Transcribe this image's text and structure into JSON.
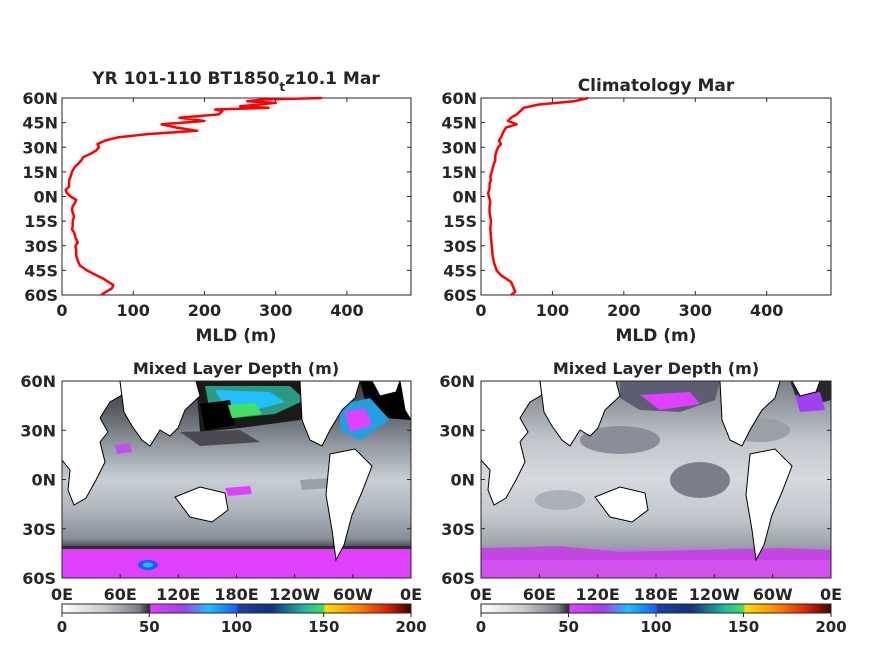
{
  "figure": {
    "colors": {
      "profile_line": "#ff0000",
      "axes": "#262626",
      "land": "#ffffff",
      "coast": "#000000"
    }
  },
  "chart_data": [
    {
      "type": "line",
      "title": "YR 101-110 BT1850",
      "title_subscript": "t",
      "title_suffix": "z10.1 Mar",
      "xlabel": "MLD (m)",
      "ylabel": "",
      "xlim": [
        0,
        490
      ],
      "ylim": [
        -60,
        60
      ],
      "x_ticks": [
        0,
        100,
        200,
        300,
        400
      ],
      "x_tick_labels": [
        "0",
        "100",
        "200",
        "300",
        "400"
      ],
      "y_ticks": [
        60,
        45,
        30,
        15,
        0,
        -15,
        -30,
        -45,
        -60
      ],
      "y_tick_labels": [
        "60N",
        "45N",
        "30N",
        "15N",
        "0N",
        "15S",
        "30S",
        "45S",
        "60S"
      ],
      "grid": false,
      "series": [
        {
          "color": "#ff0000",
          "lat": [
            60,
            59,
            58,
            57,
            56,
            55,
            54,
            53,
            52,
            50,
            48,
            46,
            44,
            42,
            40,
            38,
            36,
            34,
            32,
            30,
            28,
            26,
            24,
            22,
            20,
            18,
            15,
            12,
            10,
            8,
            6,
            4,
            2,
            0,
            -2,
            -4,
            -6,
            -8,
            -10,
            -12,
            -15,
            -18,
            -20,
            -22,
            -25,
            -28,
            -30,
            -33,
            -36,
            -39,
            -42,
            -45,
            -48,
            -50,
            -52,
            -54,
            -56,
            -58,
            -60
          ],
          "mld": [
            365,
            280,
            260,
            300,
            275,
            250,
            290,
            215,
            225,
            220,
            165,
            200,
            140,
            160,
            190,
            120,
            78,
            60,
            50,
            52,
            48,
            40,
            30,
            27,
            23,
            18,
            14,
            12,
            10,
            10,
            10,
            5,
            7,
            12,
            20,
            18,
            15,
            14,
            15,
            17,
            15,
            15,
            14,
            17,
            19,
            22,
            19,
            20,
            20,
            22,
            25,
            35,
            48,
            58,
            65,
            72,
            70,
            62,
            55
          ]
        }
      ]
    },
    {
      "type": "line",
      "title": "Climatology Mar",
      "xlabel": "MLD (m)",
      "ylabel": "",
      "xlim": [
        0,
        490
      ],
      "ylim": [
        -60,
        60
      ],
      "x_ticks": [
        0,
        100,
        200,
        300,
        400
      ],
      "x_tick_labels": [
        "0",
        "100",
        "200",
        "300",
        "400"
      ],
      "y_ticks": [
        60,
        45,
        30,
        15,
        0,
        -15,
        -30,
        -45,
        -60
      ],
      "y_tick_labels": [
        "60N",
        "45N",
        "30N",
        "15N",
        "0N",
        "15S",
        "30S",
        "45S",
        "60S"
      ],
      "grid": false,
      "series": [
        {
          "color": "#ff0000",
          "lat": [
            60,
            58,
            56,
            54,
            52,
            50,
            48,
            46,
            44,
            42,
            40,
            38,
            36,
            34,
            32,
            30,
            28,
            25,
            22,
            20,
            18,
            15,
            12,
            10,
            8,
            5,
            2,
            0,
            -3,
            -6,
            -10,
            -15,
            -20,
            -25,
            -30,
            -35,
            -40,
            -45,
            -48,
            -50,
            -52,
            -55,
            -58,
            -60
          ],
          "mld": [
            150,
            130,
            80,
            60,
            55,
            50,
            42,
            38,
            50,
            35,
            32,
            30,
            28,
            25,
            28,
            24,
            22,
            20,
            20,
            18,
            17,
            15,
            13,
            14,
            12,
            12,
            10,
            11,
            13,
            12,
            12,
            14,
            13,
            14,
            15,
            16,
            18,
            22,
            28,
            35,
            42,
            45,
            48,
            42
          ]
        }
      ]
    },
    {
      "type": "heatmap",
      "title": "Mixed Layer Depth (m)",
      "x_ticks": [
        "0E",
        "60E",
        "120E",
        "180E",
        "120W",
        "60W",
        "0E"
      ],
      "y_ticks": [
        "60N",
        "30N",
        "0N",
        "30S",
        "60S"
      ],
      "colorbar": {
        "range": [
          0,
          200
        ],
        "ticks": [
          "0",
          "50",
          "100",
          "150",
          "200"
        ]
      },
      "field_description": "model March mixed layer depth"
    },
    {
      "type": "heatmap",
      "title": "Mixed Layer Depth (m)",
      "x_ticks": [
        "0E",
        "60E",
        "120E",
        "180E",
        "120W",
        "60W",
        "0E"
      ],
      "y_ticks": [
        "60N",
        "30N",
        "0N",
        "30S",
        "60S"
      ],
      "colorbar": {
        "range": [
          0,
          200
        ],
        "ticks": [
          "0",
          "50",
          "100",
          "150",
          "200"
        ]
      },
      "field_description": "climatological March mixed layer depth"
    }
  ]
}
